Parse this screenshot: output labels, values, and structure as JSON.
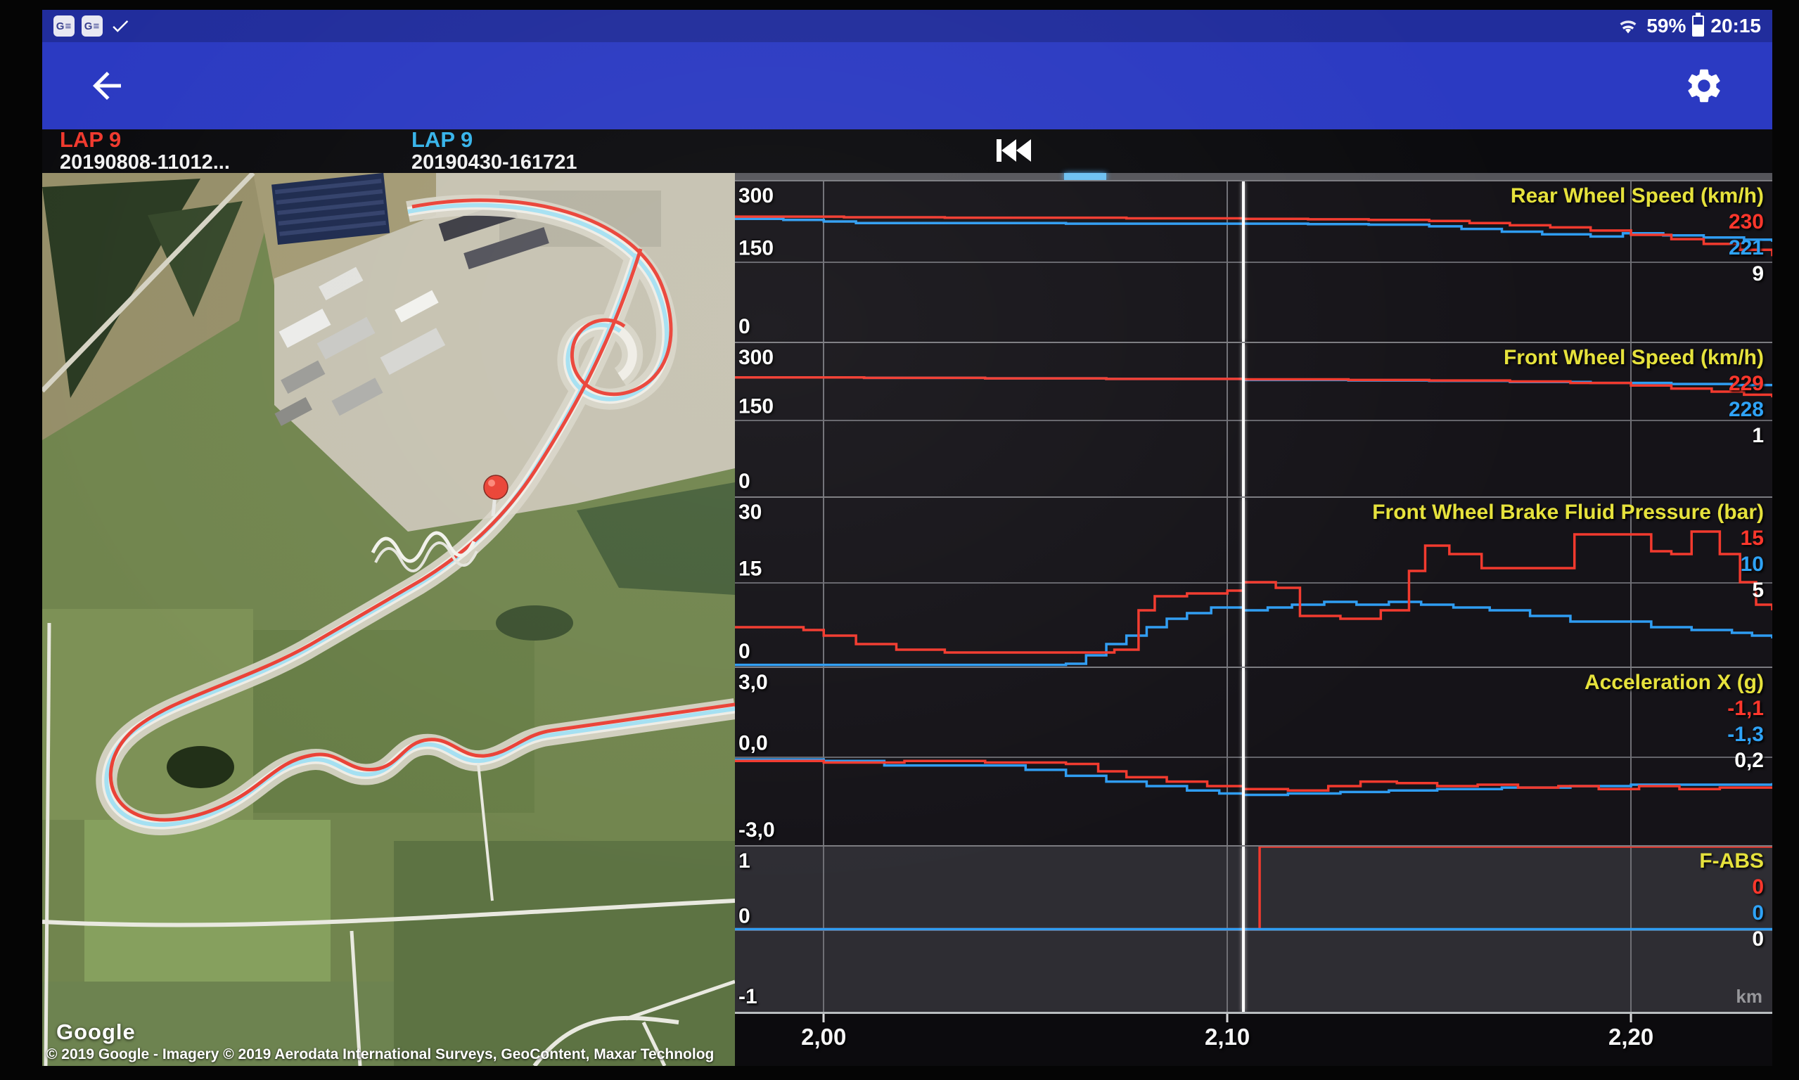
{
  "status_bar": {
    "time": "20:15",
    "battery_percent": "59%",
    "notification_icons": [
      "google-news",
      "google-news",
      "check"
    ]
  },
  "app_bar": {
    "back_icon": "arrow-left",
    "settings_icon": "gear"
  },
  "lap_header": {
    "lap_a": {
      "label": "LAP 9",
      "session": "20190808-11012...",
      "color": "#f03a2e"
    },
    "lap_b": {
      "label": "LAP 9",
      "session": "20190430-161721",
      "color": "#35b3ea"
    }
  },
  "transport": {
    "skip_to_start_icon": "skip-previous"
  },
  "map": {
    "logo": "Google",
    "attribution": "© 2019 Google - Imagery © 2019 Aerodata International Surveys, GeoContent, Maxar Technolog",
    "marker": "current-position-pin"
  },
  "xaxis": {
    "ticks": [
      "2,00",
      "2,10",
      "2,20"
    ],
    "unit": "km"
  },
  "colors": {
    "app_bar": "#2b3ac2",
    "title_yellow": "#e6e23c",
    "line_red": "#f23a2e",
    "line_blue": "#2f9df2",
    "cursor": "#ffffff"
  },
  "chart_data": [
    {
      "type": "line",
      "name": "rear_wheel_speed",
      "title": "Rear Wheel Speed (km/h)",
      "ylim": [
        0,
        300
      ],
      "yticks": [
        "300",
        "150",
        "0"
      ],
      "x_domain": [
        1.978,
        2.235
      ],
      "x_gridlines": [
        2.0,
        2.1,
        2.2
      ],
      "cursor_x": 2.104,
      "cursor_values": {
        "red": "230",
        "blue": "221",
        "white": "9"
      },
      "series": [
        {
          "name": "lap-20190430",
          "color": "#2f9df2",
          "points": [
            [
              1.978,
              230
            ],
            [
              1.99,
              228
            ],
            [
              2.0,
              225
            ],
            [
              2.008,
              222
            ],
            [
              2.03,
              222
            ],
            [
              2.06,
              221
            ],
            [
              2.08,
              221
            ],
            [
              2.104,
              221
            ],
            [
              2.12,
              220
            ],
            [
              2.135,
              219
            ],
            [
              2.15,
              216
            ],
            [
              2.158,
              211
            ],
            [
              2.168,
              206
            ],
            [
              2.178,
              201
            ],
            [
              2.19,
              197
            ],
            [
              2.198,
              203
            ],
            [
              2.208,
              199
            ],
            [
              2.218,
              195
            ],
            [
              2.228,
              191
            ],
            [
              2.235,
              187
            ]
          ]
        },
        {
          "name": "lap-20190808",
          "color": "#f23a2e",
          "points": [
            [
              1.978,
              234
            ],
            [
              2.005,
              233
            ],
            [
              2.03,
              232
            ],
            [
              2.055,
              232
            ],
            [
              2.075,
              231
            ],
            [
              2.09,
              231
            ],
            [
              2.104,
              230
            ],
            [
              2.12,
              229
            ],
            [
              2.135,
              228
            ],
            [
              2.15,
              226
            ],
            [
              2.16,
              222
            ],
            [
              2.17,
              218
            ],
            [
              2.18,
              214
            ],
            [
              2.19,
              208
            ],
            [
              2.2,
              200
            ],
            [
              2.21,
              192
            ],
            [
              2.218,
              183
            ],
            [
              2.227,
              172
            ],
            [
              2.235,
              160
            ]
          ]
        }
      ]
    },
    {
      "type": "line",
      "name": "front_wheel_speed",
      "title": "Front Wheel Speed (km/h)",
      "ylim": [
        0,
        300
      ],
      "yticks": [
        "300",
        "150",
        "0"
      ],
      "x_domain": [
        1.978,
        2.235
      ],
      "x_gridlines": [
        2.0,
        2.1,
        2.2
      ],
      "cursor_x": 2.104,
      "cursor_values": {
        "red": "229",
        "blue": "228",
        "white": "1"
      },
      "series": [
        {
          "name": "lap-20190430",
          "color": "#2f9df2",
          "points": [
            [
              1.978,
              233
            ],
            [
              2.01,
              232
            ],
            [
              2.04,
              231
            ],
            [
              2.07,
              230
            ],
            [
              2.104,
              228
            ],
            [
              2.13,
              227
            ],
            [
              2.15,
              226
            ],
            [
              2.17,
              224
            ],
            [
              2.19,
              222
            ],
            [
              2.21,
              220
            ],
            [
              2.225,
              218
            ],
            [
              2.235,
              216
            ]
          ]
        },
        {
          "name": "lap-20190808",
          "color": "#f23a2e",
          "points": [
            [
              1.978,
              233
            ],
            [
              2.01,
              232
            ],
            [
              2.04,
              231
            ],
            [
              2.07,
              230
            ],
            [
              2.104,
              229
            ],
            [
              2.13,
              228
            ],
            [
              2.15,
              227
            ],
            [
              2.17,
              225
            ],
            [
              2.185,
              222
            ],
            [
              2.2,
              217
            ],
            [
              2.21,
              211
            ],
            [
              2.22,
              205
            ],
            [
              2.228,
              199
            ],
            [
              2.235,
              194
            ]
          ]
        }
      ]
    },
    {
      "type": "line",
      "name": "front_brake_pressure",
      "title": "Front Wheel Brake Fluid Pressure (bar)",
      "ylim": [
        0,
        30
      ],
      "yticks": [
        "30",
        "15",
        "0"
      ],
      "x_domain": [
        1.978,
        2.235
      ],
      "x_gridlines": [
        2.0,
        2.1,
        2.2
      ],
      "cursor_x": 2.104,
      "cursor_values": {
        "red": "15",
        "blue": "10",
        "white": "5"
      },
      "series": [
        {
          "name": "lap-20190430",
          "color": "#2f9df2",
          "points": [
            [
              1.978,
              0.3
            ],
            [
              2.05,
              0.3
            ],
            [
              2.06,
              0.5
            ],
            [
              2.065,
              2
            ],
            [
              2.07,
              4
            ],
            [
              2.075,
              5.5
            ],
            [
              2.08,
              7
            ],
            [
              2.085,
              8.5
            ],
            [
              2.09,
              9.5
            ],
            [
              2.096,
              10.5
            ],
            [
              2.104,
              10
            ],
            [
              2.11,
              10.5
            ],
            [
              2.116,
              11
            ],
            [
              2.124,
              11.5
            ],
            [
              2.132,
              11
            ],
            [
              2.14,
              11.5
            ],
            [
              2.148,
              11
            ],
            [
              2.156,
              10.5
            ],
            [
              2.165,
              10
            ],
            [
              2.175,
              9
            ],
            [
              2.185,
              8
            ],
            [
              2.195,
              8
            ],
            [
              2.205,
              7
            ],
            [
              2.215,
              6.5
            ],
            [
              2.225,
              6
            ],
            [
              2.23,
              5.5
            ],
            [
              2.235,
              5
            ]
          ]
        },
        {
          "name": "lap-20190808",
          "color": "#f23a2e",
          "points": [
            [
              1.978,
              7
            ],
            [
              1.995,
              6.5
            ],
            [
              2.0,
              5.5
            ],
            [
              2.008,
              4
            ],
            [
              2.018,
              3
            ],
            [
              2.03,
              2.5
            ],
            [
              2.06,
              2.5
            ],
            [
              2.072,
              3
            ],
            [
              2.078,
              10
            ],
            [
              2.082,
              12.5
            ],
            [
              2.09,
              13
            ],
            [
              2.1,
              13.5
            ],
            [
              2.104,
              15
            ],
            [
              2.112,
              14
            ],
            [
              2.118,
              9
            ],
            [
              2.128,
              8.5
            ],
            [
              2.138,
              10
            ],
            [
              2.145,
              17
            ],
            [
              2.149,
              21.5
            ],
            [
              2.155,
              20
            ],
            [
              2.163,
              17.5
            ],
            [
              2.18,
              17.5
            ],
            [
              2.186,
              23.5
            ],
            [
              2.199,
              23.5
            ],
            [
              2.205,
              20.5
            ],
            [
              2.21,
              20
            ],
            [
              2.215,
              24
            ],
            [
              2.222,
              20
            ],
            [
              2.227,
              15
            ],
            [
              2.231,
              11
            ],
            [
              2.235,
              10
            ]
          ]
        }
      ]
    },
    {
      "type": "line",
      "name": "acceleration_x",
      "title": "Acceleration X (g)",
      "ylim": [
        -3,
        3
      ],
      "yticks": [
        "3,0",
        "0,0",
        "-3,0"
      ],
      "x_domain": [
        1.978,
        2.235
      ],
      "x_gridlines": [
        2.0,
        2.1,
        2.2
      ],
      "cursor_x": 2.104,
      "cursor_values": {
        "red": "-1,1",
        "blue": "-1,3",
        "white": "0,2"
      },
      "series": [
        {
          "name": "lap-20190430",
          "color": "#2f9df2",
          "points": [
            [
              1.978,
              -0.1
            ],
            [
              2.0,
              -0.15
            ],
            [
              2.015,
              -0.3
            ],
            [
              2.035,
              -0.3
            ],
            [
              2.05,
              -0.45
            ],
            [
              2.06,
              -0.65
            ],
            [
              2.07,
              -0.85
            ],
            [
              2.08,
              -1.0
            ],
            [
              2.09,
              -1.15
            ],
            [
              2.098,
              -1.25
            ],
            [
              2.104,
              -1.3
            ],
            [
              2.115,
              -1.25
            ],
            [
              2.128,
              -1.2
            ],
            [
              2.14,
              -1.15
            ],
            [
              2.152,
              -1.1
            ],
            [
              2.168,
              -1.05
            ],
            [
              2.185,
              -1.0
            ],
            [
              2.2,
              -0.95
            ],
            [
              2.215,
              -0.95
            ],
            [
              2.235,
              -0.9
            ]
          ]
        },
        {
          "name": "lap-20190808",
          "color": "#f23a2e",
          "points": [
            [
              1.978,
              -0.15
            ],
            [
              2.0,
              -0.2
            ],
            [
              2.02,
              -0.15
            ],
            [
              2.04,
              -0.2
            ],
            [
              2.06,
              -0.25
            ],
            [
              2.068,
              -0.5
            ],
            [
              2.075,
              -0.7
            ],
            [
              2.085,
              -0.85
            ],
            [
              2.095,
              -1.0
            ],
            [
              2.104,
              -1.1
            ],
            [
              2.115,
              -1.15
            ],
            [
              2.125,
              -1.0
            ],
            [
              2.133,
              -0.85
            ],
            [
              2.142,
              -0.9
            ],
            [
              2.152,
              -1.0
            ],
            [
              2.162,
              -0.95
            ],
            [
              2.172,
              -1.05
            ],
            [
              2.182,
              -1.0
            ],
            [
              2.192,
              -1.1
            ],
            [
              2.202,
              -1.0
            ],
            [
              2.212,
              -1.1
            ],
            [
              2.222,
              -1.05
            ],
            [
              2.235,
              -1.05
            ]
          ]
        }
      ]
    },
    {
      "type": "line",
      "name": "f_abs",
      "title": "F-ABS",
      "ylim": [
        -1,
        1
      ],
      "yticks": [
        "1",
        "0",
        "-1"
      ],
      "x_domain": [
        1.978,
        2.235
      ],
      "x_gridlines": [
        2.0,
        2.1,
        2.2
      ],
      "cursor_x": 2.104,
      "cursor_values": {
        "red": "0",
        "blue": "0",
        "white": "0"
      },
      "series": [
        {
          "name": "lap-20190808",
          "color": "#f23a2e",
          "points": [
            [
              1.978,
              0
            ],
            [
              2.107,
              0
            ],
            [
              2.108,
              1
            ],
            [
              2.235,
              1
            ]
          ]
        },
        {
          "name": "lap-20190430",
          "color": "#2f9df2",
          "points": [
            [
              1.978,
              0
            ],
            [
              2.235,
              0
            ]
          ]
        }
      ]
    }
  ]
}
